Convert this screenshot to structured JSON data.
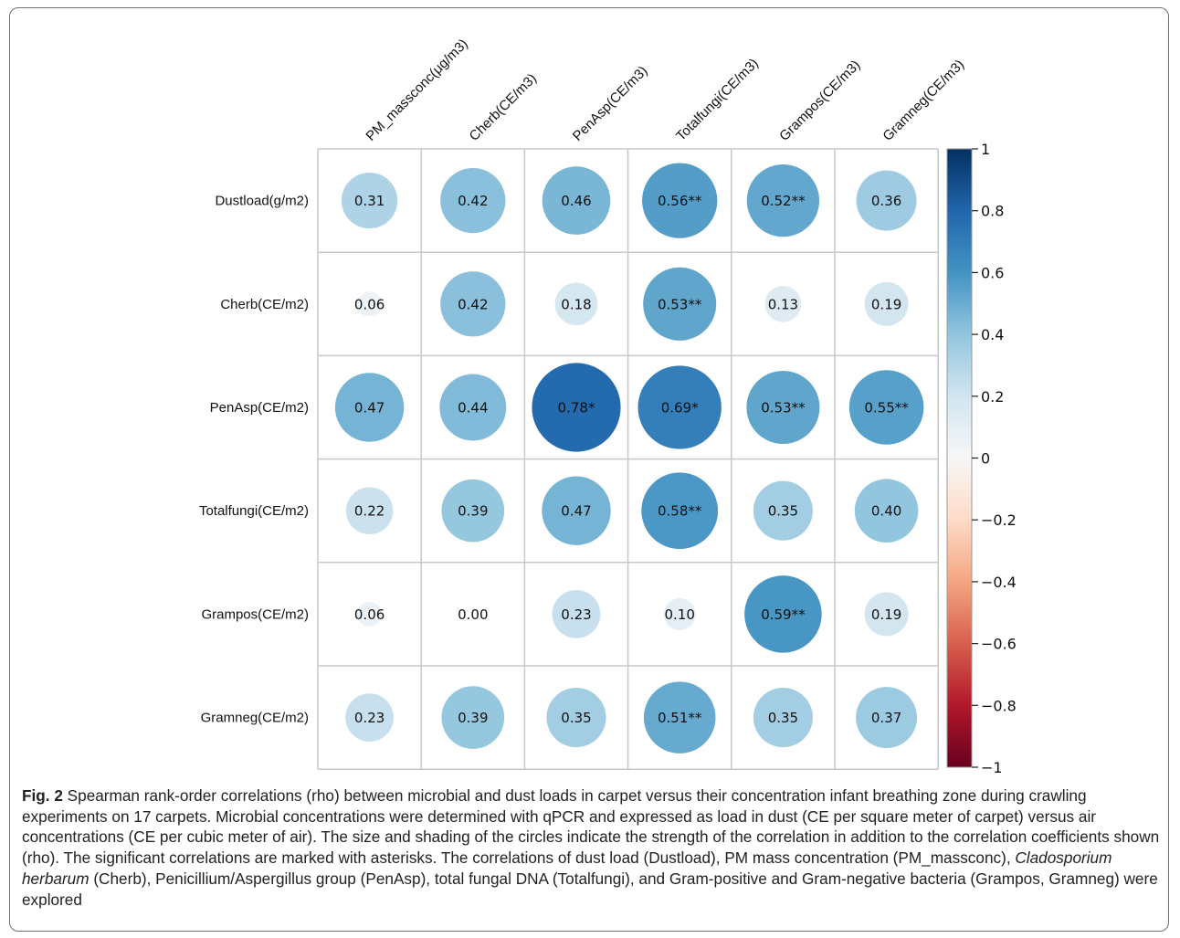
{
  "chart_data": {
    "type": "heatmap",
    "rows": [
      "Dustload(g/m2)",
      "Cherb(CE/m2)",
      "PenAsp(CE/m2)",
      "Totalfungi(CE/m2)",
      "Grampos(CE/m2)",
      "Gramneg(CE/m2)"
    ],
    "columns": [
      "PM_massconc(μg/m3)",
      "Cherb(CE/m3)",
      "PenAsp(CE/m3)",
      "Totalfungi(CE/m3)",
      "Grampos(CE/m3)",
      "Gramneg(CE/m3)"
    ],
    "values": [
      [
        0.31,
        0.42,
        0.46,
        0.56,
        0.52,
        0.36
      ],
      [
        0.06,
        0.42,
        0.18,
        0.53,
        0.13,
        0.19
      ],
      [
        0.47,
        0.44,
        0.78,
        0.69,
        0.53,
        0.55
      ],
      [
        0.22,
        0.39,
        0.47,
        0.58,
        0.35,
        0.4
      ],
      [
        0.06,
        0.0,
        0.23,
        0.1,
        0.59,
        0.19
      ],
      [
        0.23,
        0.39,
        0.35,
        0.51,
        0.35,
        0.37
      ]
    ],
    "labels": [
      [
        "0.31",
        "0.42",
        "0.46",
        "0.56**",
        "0.52**",
        "0.36"
      ],
      [
        "0.06",
        "0.42",
        "0.18",
        "0.53**",
        "0.13",
        "0.19"
      ],
      [
        "0.47",
        "0.44",
        "0.78*",
        "0.69*",
        "0.53**",
        "0.55**"
      ],
      [
        "0.22",
        "0.39",
        "0.47",
        "0.58**",
        "0.35",
        "0.40"
      ],
      [
        "0.06",
        "0.00",
        "0.23",
        "0.10",
        "0.59**",
        "0.19"
      ],
      [
        "0.23",
        "0.39",
        "0.35",
        "0.51**",
        "0.35",
        "0.37"
      ]
    ],
    "colorbar": {
      "range": [
        -1,
        1
      ],
      "ticks": [
        "1",
        "0.8",
        "0.6",
        "0.4",
        "0.2",
        "0",
        "−0.2",
        "−0.4",
        "−0.6",
        "−0.8",
        "−1"
      ],
      "colors": [
        "#67001f",
        "#b2182b",
        "#d6604d",
        "#f4a582",
        "#fddbc7",
        "#f7f7f7",
        "#d1e5f0",
        "#92c5de",
        "#4393c3",
        "#2166ac",
        "#053061"
      ]
    },
    "grid": true
  },
  "caption": {
    "fig_label": "Fig. 2",
    "part1": " Spearman rank-order correlations (rho) between microbial and dust loads in carpet versus their concentration infant breathing zone during crawling experiments on 17 carpets. Microbial concentrations were determined with qPCR and expressed as load in dust (CE per square meter of carpet) versus air concentrations (CE per cubic meter of air). The size and shading of the circles indicate the strength of the correlation in addition to the correlation coefficients shown (rho). The significant correlations are marked with asterisks. The correlations of dust load (Dustload), PM mass concentration (PM_massconc), ",
    "italic": "Cladosporium herbarum",
    "part2": " (Cherb), Penicillium/Aspergillus group (PenAsp), total fungal DNA (Totalfungi), and Gram-positive and Gram-negative bacteria (Grampos, Gramneg) were explored"
  }
}
